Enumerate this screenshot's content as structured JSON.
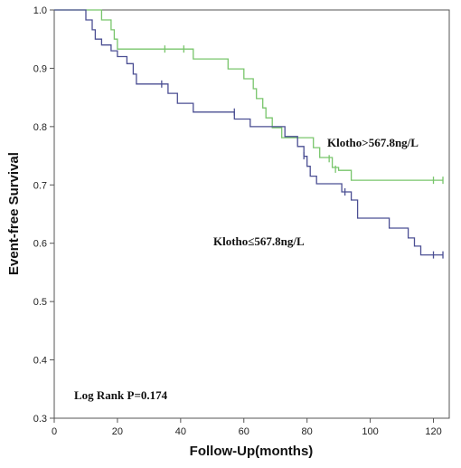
{
  "chart_data": {
    "type": "line",
    "title": "",
    "xlabel": "Follow-Up(months)",
    "ylabel": "Event-free Survival",
    "xlim": [
      0,
      125
    ],
    "ylim": [
      0.3,
      1.0
    ],
    "x_ticks": [
      "0",
      "20",
      "40",
      "60",
      "80",
      "100",
      "120"
    ],
    "y_ticks": [
      "1.0",
      "0.9",
      "0.8",
      "0.7",
      "0.6",
      "0.5",
      "0.4",
      "0.3"
    ],
    "grid": false,
    "curve_style": "step",
    "series": [
      {
        "name": "Klotho>567.8ng/L",
        "color": "#78c56b",
        "points": [
          [
            0,
            1.0
          ],
          [
            15,
            1.0
          ],
          [
            15,
            0.983
          ],
          [
            18,
            0.983
          ],
          [
            18,
            0.966
          ],
          [
            19,
            0.966
          ],
          [
            19,
            0.95
          ],
          [
            20,
            0.95
          ],
          [
            20,
            0.933
          ],
          [
            44,
            0.933
          ],
          [
            44,
            0.916
          ],
          [
            55,
            0.916
          ],
          [
            55,
            0.899
          ],
          [
            60,
            0.899
          ],
          [
            60,
            0.882
          ],
          [
            63,
            0.882
          ],
          [
            63,
            0.865
          ],
          [
            64,
            0.865
          ],
          [
            64,
            0.848
          ],
          [
            66,
            0.848
          ],
          [
            66,
            0.832
          ],
          [
            67,
            0.832
          ],
          [
            67,
            0.815
          ],
          [
            69,
            0.815
          ],
          [
            69,
            0.798
          ],
          [
            72,
            0.798
          ],
          [
            72,
            0.781
          ],
          [
            82,
            0.781
          ],
          [
            82,
            0.764
          ],
          [
            84,
            0.764
          ],
          [
            84,
            0.747
          ],
          [
            88,
            0.747
          ],
          [
            88,
            0.73
          ],
          [
            90,
            0.73
          ],
          [
            90,
            0.725
          ],
          [
            94,
            0.725
          ],
          [
            94,
            0.708
          ],
          [
            123,
            0.708
          ]
        ],
        "censor_marks": [
          [
            35,
            0.933
          ],
          [
            41,
            0.933
          ],
          [
            87,
            0.745
          ],
          [
            89,
            0.727
          ],
          [
            120,
            0.708
          ],
          [
            123,
            0.708
          ]
        ]
      },
      {
        "name": "Klotho≤567.8ng/L",
        "color": "#4b4f93",
        "points": [
          [
            0,
            1.0
          ],
          [
            10,
            1.0
          ],
          [
            10,
            0.983
          ],
          [
            12,
            0.983
          ],
          [
            12,
            0.966
          ],
          [
            13,
            0.966
          ],
          [
            13,
            0.95
          ],
          [
            15,
            0.95
          ],
          [
            15,
            0.94
          ],
          [
            18,
            0.94
          ],
          [
            18,
            0.93
          ],
          [
            20,
            0.93
          ],
          [
            20,
            0.92
          ],
          [
            23,
            0.92
          ],
          [
            23,
            0.908
          ],
          [
            25,
            0.908
          ],
          [
            25,
            0.89
          ],
          [
            26,
            0.89
          ],
          [
            26,
            0.873
          ],
          [
            36,
            0.873
          ],
          [
            36,
            0.857
          ],
          [
            39,
            0.857
          ],
          [
            39,
            0.84
          ],
          [
            44,
            0.84
          ],
          [
            44,
            0.825
          ],
          [
            57,
            0.825
          ],
          [
            57,
            0.813
          ],
          [
            62,
            0.813
          ],
          [
            62,
            0.8
          ],
          [
            73,
            0.8
          ],
          [
            73,
            0.783
          ],
          [
            77,
            0.783
          ],
          [
            77,
            0.766
          ],
          [
            79,
            0.766
          ],
          [
            79,
            0.749
          ],
          [
            80,
            0.749
          ],
          [
            80,
            0.732
          ],
          [
            81,
            0.732
          ],
          [
            81,
            0.715
          ],
          [
            83,
            0.715
          ],
          [
            83,
            0.702
          ],
          [
            91,
            0.702
          ],
          [
            91,
            0.688
          ],
          [
            94,
            0.688
          ],
          [
            94,
            0.674
          ],
          [
            96,
            0.674
          ],
          [
            96,
            0.643
          ],
          [
            106,
            0.643
          ],
          [
            106,
            0.626
          ],
          [
            112,
            0.626
          ],
          [
            112,
            0.609
          ],
          [
            114,
            0.609
          ],
          [
            114,
            0.595
          ],
          [
            116,
            0.595
          ],
          [
            116,
            0.58
          ],
          [
            123,
            0.58
          ]
        ],
        "censor_marks": [
          [
            34,
            0.873
          ],
          [
            57,
            0.825
          ],
          [
            79,
            0.75
          ],
          [
            92,
            0.688
          ],
          [
            120,
            0.58
          ],
          [
            123,
            0.58
          ]
        ]
      }
    ],
    "annotations": {
      "high_label": "Klotho>567.8ng/L",
      "low_label": "Klotho≤567.8ng/L",
      "log_rank": "Log Rank P=0.174"
    }
  }
}
